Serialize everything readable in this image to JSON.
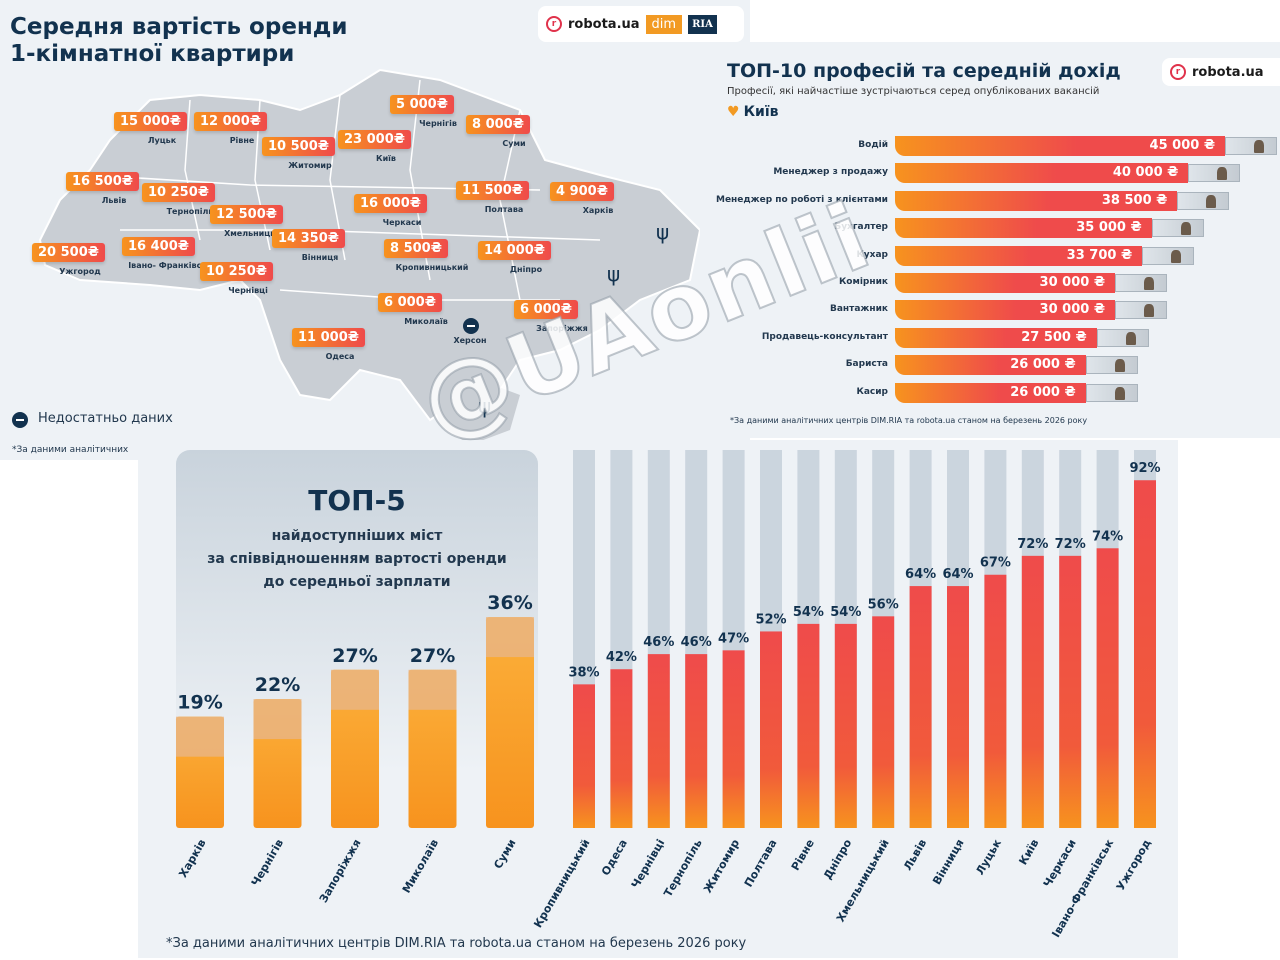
{
  "map_panel": {
    "title_line1": "Середня вартість оренди",
    "title_line2": "1-кімнатної квартири",
    "logos": {
      "robota": "robota.ua",
      "r_letter": "r",
      "dim": "dim",
      "ria": "RIA"
    },
    "cities": [
      {
        "name": "Луцьк",
        "price": "15 000₴"
      },
      {
        "name": "Рівне",
        "price": "12 000₴"
      },
      {
        "name": "Житомир",
        "price": "10 500₴"
      },
      {
        "name": "Київ",
        "price": "23 000₴"
      },
      {
        "name": "Чернігів",
        "price": "5 000₴"
      },
      {
        "name": "Суми",
        "price": "8 000₴"
      },
      {
        "name": "Львів",
        "price": "16 500₴"
      },
      {
        "name": "Тернопіль",
        "price": "10 250₴"
      },
      {
        "name": "Хмельницький",
        "price": "12 500₴"
      },
      {
        "name": "Вінниця",
        "price": "14 350₴"
      },
      {
        "name": "Черкаси",
        "price": "16 000₴"
      },
      {
        "name": "Полтава",
        "price": "11 500₴"
      },
      {
        "name": "Харків",
        "price": "4 900₴"
      },
      {
        "name": "Ужгород",
        "price": "20 500₴"
      },
      {
        "name": "Івано- Франківськ",
        "price": "16 400₴"
      },
      {
        "name": "Чернівці",
        "price": "10 250₴"
      },
      {
        "name": "Кропивницький",
        "price": "8 500₴"
      },
      {
        "name": "Дніпро",
        "price": "14 000₴"
      },
      {
        "name": "Миколаїв",
        "price": "6 000₴"
      },
      {
        "name": "Запоріжжя",
        "price": "6 000₴"
      },
      {
        "name": "Одеса",
        "price": "11 000₴"
      }
    ],
    "nodata_city": "Херсон",
    "legend_nodata": "Недостатньо даних",
    "footnote": "*За даними аналітичних"
  },
  "professions_panel": {
    "title": "ТОП-10 професій та середній дохід",
    "subtitle": "Професії, які найчастіше зустрічаються серед опублікованих вакансій",
    "city": "Київ",
    "logo": "robota.ua",
    "footnote": "*За даними аналітичних центрів DIM.RIA та robota.ua станом на березень 2026 року"
  },
  "ratio_panel": {
    "title": "ТОП-5",
    "subtitle_lines": [
      "найдоступніших міст",
      "за співвідношенням вартості оренди",
      "до середньої зарплати"
    ],
    "footnote": "*За даними аналітичних центрів DIM.RIA та robota.ua станом на березень 2026 року"
  },
  "watermark": "@UAonlii",
  "colors": {
    "navy": "#12324f",
    "orange": "#f7931e",
    "red": "#ef4b4b",
    "grey_bar": "#cbd5de",
    "bg": "#eef2f6"
  },
  "chart_data": [
    {
      "type": "bar",
      "orientation": "horizontal",
      "title": "ТОП-10 професій та середній дохід",
      "unit": "₴",
      "categories": [
        "Водій",
        "Менеджер з продажу",
        "Менеджер по роботі з клієнтами",
        "Бухгалтер",
        "Кухар",
        "Комірник",
        "Вантажник",
        "Продавець-консультант",
        "Бариста",
        "Касир"
      ],
      "values": [
        45000,
        40000,
        38500,
        35000,
        33700,
        30000,
        30000,
        27500,
        26000,
        26000
      ],
      "labels": [
        "45 000 ₴",
        "40 000 ₴",
        "38 500 ₴",
        "35 000 ₴",
        "33 700 ₴",
        "30 000 ₴",
        "30 000 ₴",
        "27 500 ₴",
        "26 000 ₴",
        "26 000 ₴"
      ]
    },
    {
      "type": "bar",
      "title": "ТОП-5 найдоступніших міст за співвідношенням вартості оренди до середньої зарплати",
      "unit": "%",
      "ylim": [
        0,
        100
      ],
      "top5_count": 5,
      "categories": [
        "Харків",
        "Чернігів",
        "Запоріжжя",
        "Миколаїв",
        "Суми",
        "Кропивницький",
        "Одеса",
        "Чернівці",
        "Тернопіль",
        "Житомир",
        "Полтава",
        "Рівне",
        "Дніпро",
        "Хмельницький",
        "Львів",
        "Вінниця",
        "Луцьк",
        "Київ",
        "Черкаси",
        "Івано-Франківськ",
        "Ужгород"
      ],
      "values": [
        19,
        22,
        27,
        27,
        36,
        38,
        42,
        46,
        46,
        47,
        52,
        54,
        54,
        56,
        64,
        64,
        67,
        72,
        72,
        74,
        92
      ],
      "labels": [
        "19%",
        "22%",
        "27%",
        "27%",
        "36%",
        "38%",
        "42%",
        "46%",
        "46%",
        "47%",
        "52%",
        "54%",
        "54%",
        "56%",
        "64%",
        "64%",
        "67%",
        "72%",
        "72%",
        "74%",
        "92%"
      ]
    }
  ]
}
